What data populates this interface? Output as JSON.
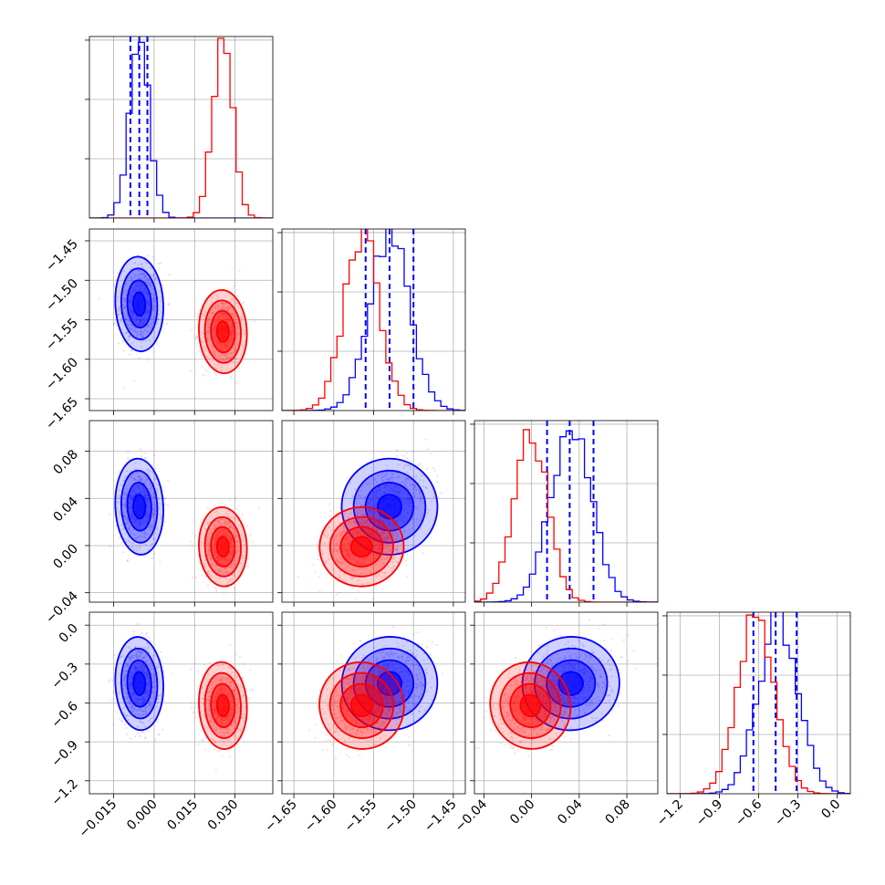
{
  "chart_data": {
    "type": "corner",
    "title": "",
    "grid": true,
    "legend": "none",
    "colors": {
      "blue": "#0000ff",
      "red": "#ff0000",
      "grid": "#b0b0b0"
    },
    "params": [
      {
        "id": "p0",
        "label": "",
        "range": [
          -0.024,
          0.044
        ],
        "ticks": [
          -0.015,
          0.0,
          0.015,
          0.03
        ],
        "tick_labels": [
          "−0.015",
          "0.000",
          "0.015",
          "0.030"
        ]
      },
      {
        "id": "p1",
        "label": "",
        "range": [
          -1.665,
          -1.435
        ],
        "ticks": [
          -1.65,
          -1.6,
          -1.55,
          -1.5,
          -1.45
        ],
        "tick_labels": [
          "−1.65",
          "−1.60",
          "−1.55",
          "−1.50",
          "−1.45"
        ]
      },
      {
        "id": "p2",
        "label": "",
        "range": [
          -0.048,
          0.106
        ],
        "ticks": [
          -0.04,
          0.0,
          0.04,
          0.08
        ],
        "tick_labels": [
          "−0.04",
          "0.00",
          "0.04",
          "0.08"
        ]
      },
      {
        "id": "p3",
        "label": "",
        "range": [
          -1.3,
          0.1
        ],
        "ticks": [
          -1.2,
          -0.9,
          -0.6,
          -0.3,
          0.0
        ],
        "tick_labels": [
          "−1.2",
          "−0.9",
          "−0.6",
          "−0.3",
          "0.0"
        ]
      }
    ],
    "series": [
      {
        "name": "",
        "color": "#0000ff",
        "mean": [
          -0.0055,
          -1.53,
          0.033,
          -0.45
        ],
        "sd": [
          0.0037,
          0.025,
          0.017,
          0.15
        ],
        "quantiles": [
          [
            -0.0088,
            -0.0055,
            -0.0025
          ],
          [
            -1.56,
            -1.53,
            -1.5
          ],
          [
            0.013,
            0.032,
            0.052
          ],
          [
            -0.64,
            -0.47,
            -0.31
          ]
        ]
      },
      {
        "name": "",
        "color": "#ff0000",
        "mean": [
          0.0255,
          -1.565,
          -0.001,
          -0.62
        ],
        "sd": [
          0.0037,
          0.022,
          0.014,
          0.14
        ],
        "quantiles": []
      }
    ]
  }
}
